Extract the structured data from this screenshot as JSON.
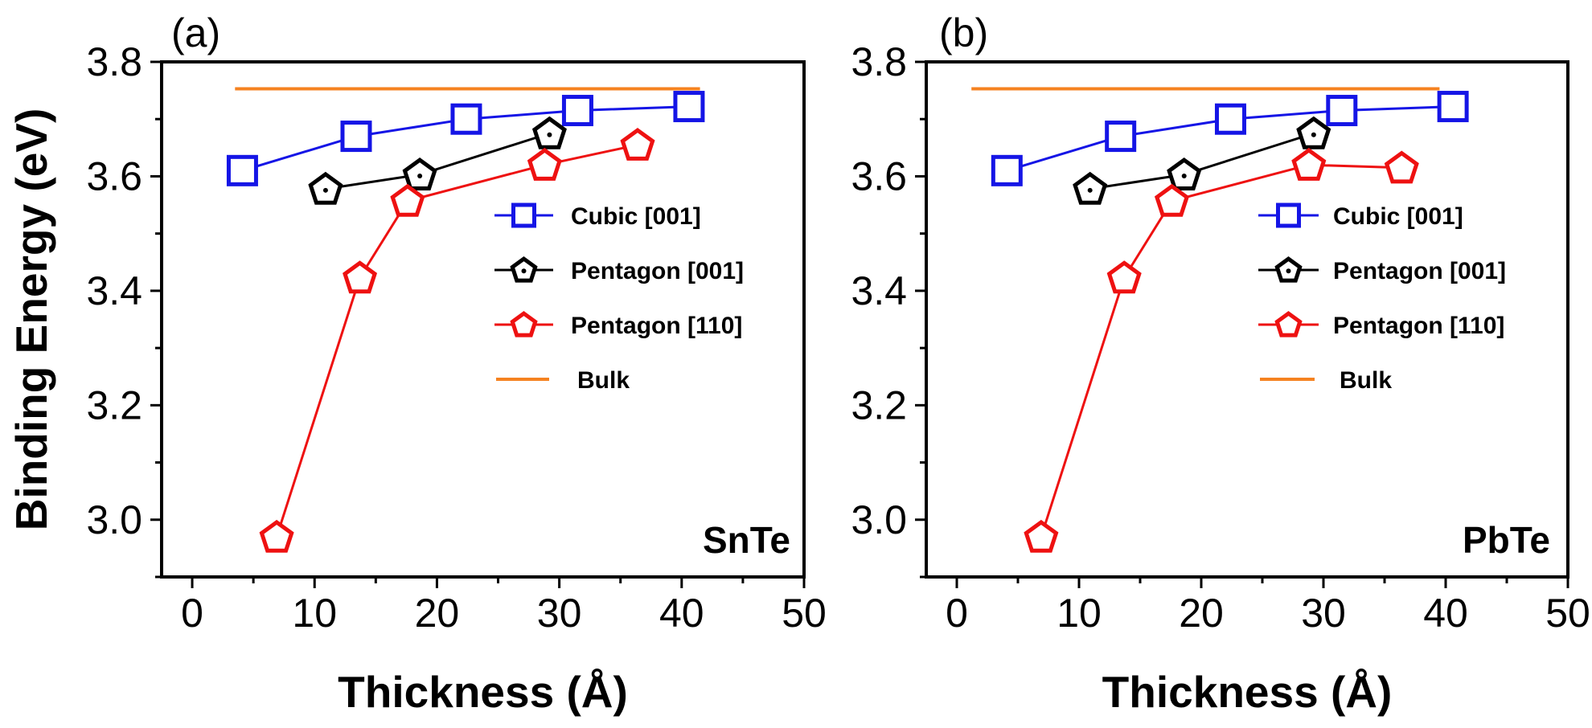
{
  "chart_data": [
    {
      "type": "line",
      "panel_label": "(a)",
      "material": "SnTe",
      "title": "",
      "xlabel": "Thickness (Å)",
      "ylabel": "Binding Energy (eV)",
      "xlim": [
        -2.5,
        50
      ],
      "ylim": [
        2.9,
        3.8
      ],
      "xticks": [
        0,
        10,
        20,
        30,
        40,
        50
      ],
      "yticks": [
        3.0,
        3.2,
        3.4,
        3.6,
        3.8
      ],
      "xtick_labels": [
        "0",
        "10",
        "20",
        "30",
        "40",
        "50"
      ],
      "ytick_labels": [
        "3.0",
        "3.2",
        "3.4",
        "3.6",
        "3.8"
      ],
      "legend_position": "center-right",
      "series": [
        {
          "name": "Cubic [001]",
          "color": "#1515e6",
          "marker": "square",
          "x": [
            4.1,
            13.4,
            22.4,
            31.5,
            40.6
          ],
          "y": [
            3.61,
            3.67,
            3.7,
            3.715,
            3.722
          ]
        },
        {
          "name": "Pentagon [001]",
          "color": "#000000",
          "marker": "pentagon-dot",
          "x": [
            10.9,
            18.6,
            29.2
          ],
          "y": [
            3.578,
            3.603,
            3.675
          ]
        },
        {
          "name": "Pentagon [110]",
          "color": "#ee1111",
          "marker": "pentagon",
          "x": [
            6.9,
            13.7,
            17.6,
            28.8,
            36.4
          ],
          "y": [
            2.97,
            3.423,
            3.557,
            3.62,
            3.655
          ]
        },
        {
          "name": "Bulk",
          "color": "#f58220",
          "marker": "none",
          "x": [
            3.5,
            41.5
          ],
          "y": [
            3.753,
            3.753
          ]
        }
      ]
    },
    {
      "type": "line",
      "panel_label": "(b)",
      "material": "PbTe",
      "title": "",
      "xlabel": "Thickness (Å)",
      "ylabel": "",
      "xlim": [
        -2.5,
        50
      ],
      "ylim": [
        2.9,
        3.8
      ],
      "xticks": [
        0,
        10,
        20,
        30,
        40,
        50
      ],
      "yticks": [
        3.0,
        3.2,
        3.4,
        3.6,
        3.8
      ],
      "xtick_labels": [
        "0",
        "10",
        "20",
        "30",
        "40",
        "50"
      ],
      "ytick_labels": [
        "3.0",
        "3.2",
        "3.4",
        "3.6",
        "3.8"
      ],
      "legend_position": "center-right",
      "series": [
        {
          "name": "Cubic [001]",
          "color": "#1515e6",
          "marker": "square",
          "x": [
            4.1,
            13.4,
            22.4,
            31.5,
            40.6
          ],
          "y": [
            3.61,
            3.67,
            3.7,
            3.715,
            3.722
          ]
        },
        {
          "name": "Pentagon [001]",
          "color": "#000000",
          "marker": "pentagon-dot",
          "x": [
            10.9,
            18.6,
            29.2
          ],
          "y": [
            3.578,
            3.603,
            3.675
          ]
        },
        {
          "name": "Pentagon [110]",
          "color": "#ee1111",
          "marker": "pentagon",
          "x": [
            6.9,
            13.7,
            17.6,
            28.8,
            36.4
          ],
          "y": [
            2.97,
            3.423,
            3.557,
            3.62,
            3.615
          ]
        },
        {
          "name": "Bulk",
          "color": "#f58220",
          "marker": "none",
          "x": [
            1.2,
            39.5
          ],
          "y": [
            3.753,
            3.753
          ]
        }
      ]
    }
  ]
}
